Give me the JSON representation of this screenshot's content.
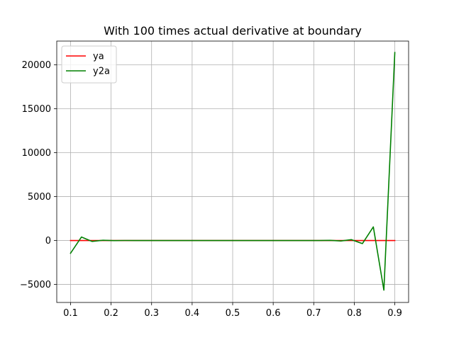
{
  "chart_data": {
    "type": "line",
    "title": "With 100 times actual derivative at boundary",
    "xlabel": "",
    "ylabel": "",
    "xlim": [
      0.066,
      0.934
    ],
    "ylim": [
      -7050,
      22700
    ],
    "xticks": [
      0.1,
      0.2,
      0.3,
      0.4,
      0.5,
      0.6,
      0.7,
      0.8,
      0.9
    ],
    "xtick_labels": [
      "0.1",
      "0.2",
      "0.3",
      "0.4",
      "0.5",
      "0.6",
      "0.7",
      "0.8",
      "0.9"
    ],
    "yticks": [
      -5000,
      0,
      5000,
      10000,
      15000,
      20000
    ],
    "ytick_labels": [
      "−5000",
      "0",
      "5000",
      "10000",
      "15000",
      "20000"
    ],
    "grid": true,
    "legend_position": "upper-left",
    "series": [
      {
        "name": "ya",
        "color": "#ff0000",
        "x": [
          0.1,
          0.9
        ],
        "y": [
          0,
          0
        ]
      },
      {
        "name": "y2a",
        "color": "#008000",
        "x": [
          0.1,
          0.127,
          0.153,
          0.18,
          0.207,
          0.233,
          0.26,
          0.287,
          0.313,
          0.34,
          0.367,
          0.393,
          0.42,
          0.447,
          0.473,
          0.5,
          0.527,
          0.553,
          0.58,
          0.607,
          0.633,
          0.66,
          0.687,
          0.713,
          0.74,
          0.767,
          0.793,
          0.82,
          0.847,
          0.873,
          0.9
        ],
        "y": [
          -1450,
          400,
          -100,
          30,
          -10,
          5,
          -2,
          1,
          0,
          0,
          0,
          0,
          0,
          0,
          0,
          0,
          0,
          0,
          0,
          0,
          0,
          0,
          0,
          1,
          20,
          -50,
          100,
          -350,
          1550,
          -5650,
          21400
        ]
      }
    ]
  }
}
